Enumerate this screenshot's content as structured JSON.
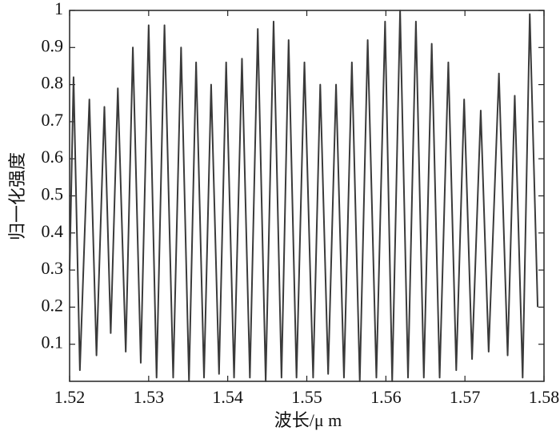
{
  "chart_data": {
    "type": "line",
    "x_label": "波长/μ m",
    "y_label": "归一化强度",
    "x": [
      1.52,
      1.5205,
      1.5213,
      1.5225,
      1.5234,
      1.5244,
      1.5252,
      1.5261,
      1.5271,
      1.528,
      1.529,
      1.53,
      1.531,
      1.532,
      1.5331,
      1.5341,
      1.5351,
      1.536,
      1.537,
      1.5379,
      1.5389,
      1.5398,
      1.5408,
      1.5418,
      1.5428,
      1.5438,
      1.5448,
      1.5458,
      1.5468,
      1.5477,
      1.5487,
      1.5497,
      1.5508,
      1.5517,
      1.5527,
      1.5537,
      1.5547,
      1.5557,
      1.5567,
      1.5577,
      1.5588,
      1.5599,
      1.5608,
      1.5618,
      1.5628,
      1.5638,
      1.5648,
      1.5658,
      1.5668,
      1.5679,
      1.5689,
      1.5699,
      1.5709,
      1.572,
      1.573,
      1.5743,
      1.5754,
      1.5763,
      1.5773,
      1.5782,
      1.5792
    ],
    "series": [
      {
        "color": "#3a3a3a",
        "values": [
          0.3,
          0.82,
          0.03,
          0.76,
          0.07,
          0.74,
          0.13,
          0.79,
          0.08,
          0.9,
          0.05,
          0.96,
          0.01,
          0.96,
          0.01,
          0.9,
          0.0,
          0.86,
          0.01,
          0.8,
          0.02,
          0.86,
          0.01,
          0.87,
          0.01,
          0.95,
          0.0,
          0.97,
          0.01,
          0.92,
          0.01,
          0.86,
          0.01,
          0.8,
          0.02,
          0.8,
          0.01,
          0.86,
          0.0,
          0.92,
          0.01,
          0.97,
          0.0,
          1.0,
          0.01,
          0.97,
          0.01,
          0.91,
          0.01,
          0.86,
          0.03,
          0.76,
          0.06,
          0.73,
          0.08,
          0.83,
          0.07,
          0.77,
          0.01,
          0.99,
          0.2
        ]
      }
    ],
    "xlim": [
      1.52,
      1.58
    ],
    "xticks": [
      1.52,
      1.53,
      1.54,
      1.55,
      1.56,
      1.57,
      1.58
    ],
    "ylim": [
      0,
      1
    ],
    "yticks": [
      0.1,
      0.2,
      0.3,
      0.4,
      0.5,
      0.6,
      0.7,
      0.8,
      0.9,
      1
    ],
    "grid": false
  }
}
